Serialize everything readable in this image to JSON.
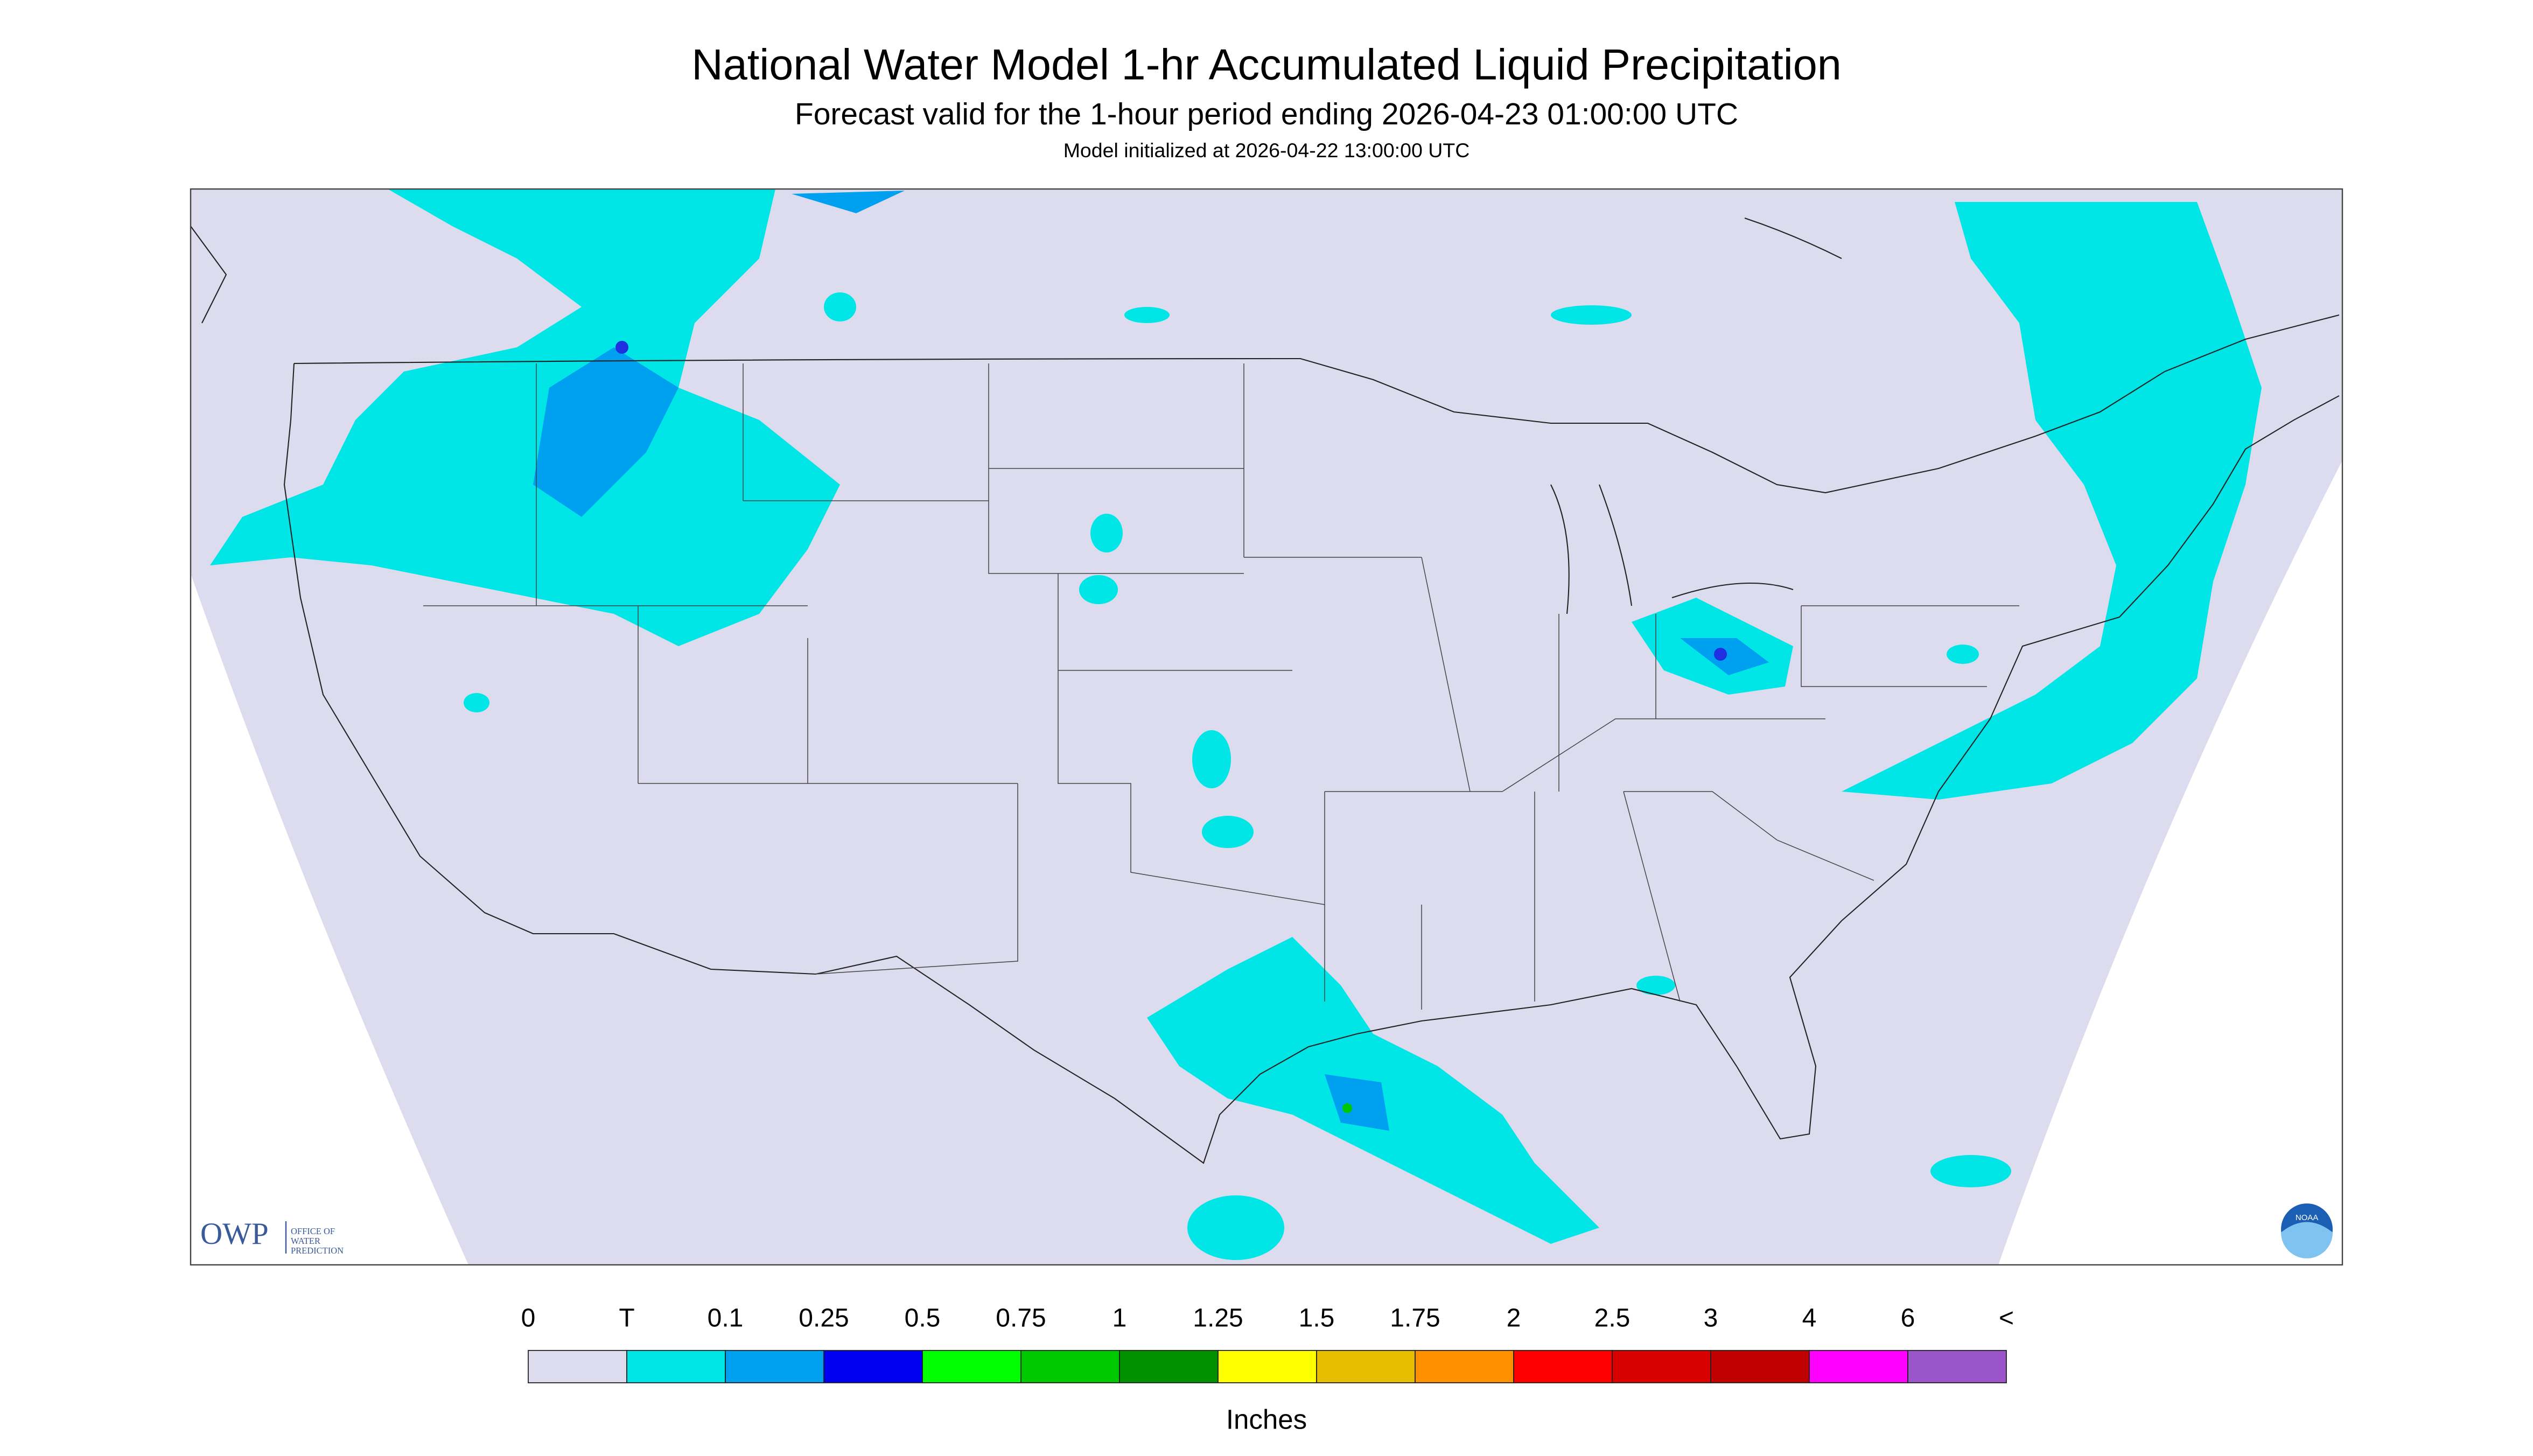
{
  "header": {
    "title": "National Water Model 1-hr Accumulated Liquid Precipitation",
    "subtitle": "Forecast valid for the 1-hour period ending 2026-04-23 01:00:00 UTC",
    "initialized": "Model initialized at 2026-04-22 13:00:00 UTC"
  },
  "legend": {
    "labels": [
      "0",
      "T",
      "0.1",
      "0.25",
      "0.5",
      "0.75",
      "1",
      "1.25",
      "1.5",
      "1.75",
      "2",
      "2.5",
      "3",
      "4",
      "6",
      "<"
    ],
    "colors": [
      "#dcdcee",
      "#00e5e5",
      "#00a0f0",
      "#0000f0",
      "#00ff00",
      "#00c800",
      "#009000",
      "#ffff00",
      "#e6c000",
      "#ff9000",
      "#ff0000",
      "#d80000",
      "#c00000",
      "#ff00ff",
      "#9955c9"
    ],
    "unit": "Inches"
  },
  "logos": {
    "owp": "OWP",
    "owp_name": [
      "OFFICE OF",
      "WATER",
      "PREDICTION"
    ],
    "noaa": "NOAA"
  }
}
